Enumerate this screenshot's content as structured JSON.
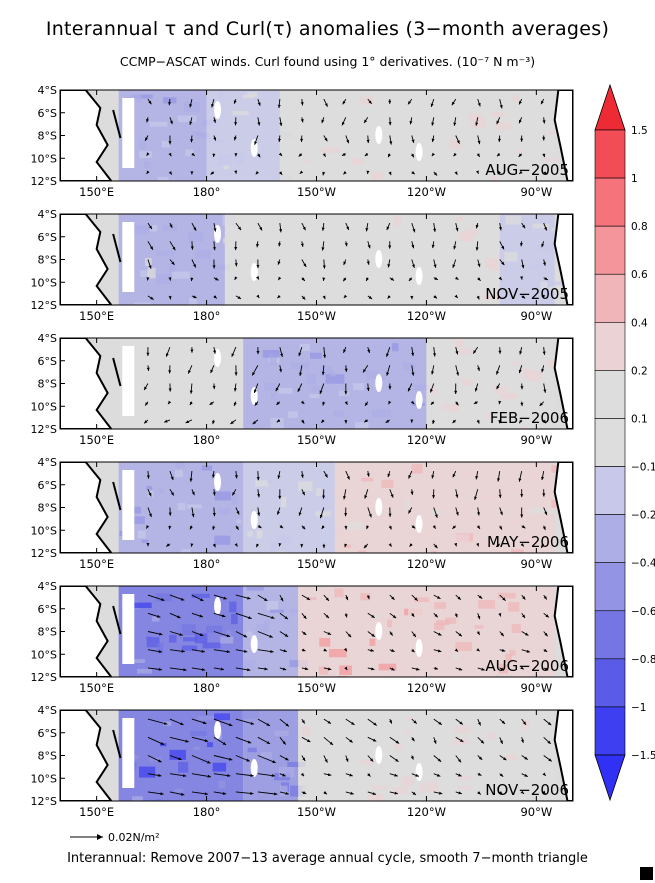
{
  "header": {
    "title": "Interannual τ and Curl(τ) anomalies (3−month averages)",
    "subtitle": "CCMP−ASCAT winds. Curl found using 1° derivatives. (10⁻⁷ N m⁻³)"
  },
  "footer": {
    "note": "Interannual: Remove 2007−13 average annual cycle, smooth 7−month triangle"
  },
  "reference_vector": {
    "label": "0.02N/m²",
    "magnitude": 0.02
  },
  "colorbar": {
    "tick_labels": [
      "1.5",
      "1",
      "0.8",
      "0.6",
      "0.4",
      "0.2",
      "0.1",
      "−0.1",
      "−0.2",
      "−0.4",
      "−0.6",
      "−0.8",
      "−1",
      "−1.5"
    ],
    "colors": [
      "#ee2a34",
      "#f24d57",
      "#f5737a",
      "#f3959a",
      "#efb5b8",
      "#ebd3d5",
      "#dddddd",
      "#dddddd",
      "#c8c9ea",
      "#adaee6",
      "#9394e3",
      "#7576e3",
      "#5a5be6",
      "#3d3ff0",
      "#3031f5"
    ]
  },
  "colors": {
    "land_coast": "#000000",
    "missing": "#ffffff",
    "neutral": "#dcdcdc"
  },
  "chart_data": {
    "type": "heatmap",
    "description_units": "Curl(τ) anomaly 10^-7 N m^-3 (shaded), τ anomaly vectors (arrows)",
    "xlim": [
      140,
      280
    ],
    "ylim": [
      -12,
      -4
    ],
    "x_tick_values": [
      150,
      180,
      210,
      240,
      270
    ],
    "x_tick_labels": [
      "150°E",
      "180°",
      "150°W",
      "120°W",
      "90°W"
    ],
    "y_tick_values": [
      -4,
      -6,
      -8,
      -10,
      -12
    ],
    "y_tick_labels": [
      "4°S",
      "6°S",
      "8°S",
      "10°S",
      "12°S"
    ],
    "panels": [
      {
        "label": "AUG−2005",
        "curl_regions": [
          {
            "x": [
              156,
              180
            ],
            "value": -0.3
          },
          {
            "x": [
              180,
              200
            ],
            "value": -0.1
          },
          {
            "x": [
              200,
              250
            ],
            "value": 0.15
          },
          {
            "x": [
              250,
              275
            ],
            "value": 0.2
          }
        ],
        "wind_u": 0.0,
        "wind_v": 0.006
      },
      {
        "label": "NOV−2005",
        "curl_regions": [
          {
            "x": [
              156,
              185
            ],
            "value": -0.2
          },
          {
            "x": [
              185,
              230
            ],
            "value": 0.1
          },
          {
            "x": [
              230,
              260
            ],
            "value": 0.2
          },
          {
            "x": [
              260,
              275
            ],
            "value": -0.1
          }
        ],
        "wind_u": 0.002,
        "wind_v": 0.006
      },
      {
        "label": "FEB−2006",
        "curl_regions": [
          {
            "x": [
              156,
              190
            ],
            "value": 0.1
          },
          {
            "x": [
              190,
              240
            ],
            "value": -0.3
          },
          {
            "x": [
              240,
              275
            ],
            "value": 0.2
          }
        ],
        "wind_u": -0.002,
        "wind_v": 0.007
      },
      {
        "label": "MAY−2006",
        "curl_regions": [
          {
            "x": [
              156,
              190
            ],
            "value": -0.3
          },
          {
            "x": [
              190,
              215
            ],
            "value": -0.1
          },
          {
            "x": [
              215,
              275
            ],
            "value": 0.3
          }
        ],
        "wind_u": 0.0,
        "wind_v": 0.007
      },
      {
        "label": "AUG−2006",
        "curl_regions": [
          {
            "x": [
              156,
              190
            ],
            "value": -0.6
          },
          {
            "x": [
              190,
              205
            ],
            "value": -0.3
          },
          {
            "x": [
              205,
              235
            ],
            "value": 0.4
          },
          {
            "x": [
              235,
              275
            ],
            "value": 0.3
          }
        ],
        "wind_u": 0.01,
        "wind_v": 0.004
      },
      {
        "label": "NOV−2006",
        "curl_regions": [
          {
            "x": [
              156,
              190
            ],
            "value": -0.7
          },
          {
            "x": [
              190,
              205
            ],
            "value": -0.4
          },
          {
            "x": [
              205,
              240
            ],
            "value": 0.2
          },
          {
            "x": [
              240,
              275
            ],
            "value": 0.15
          }
        ],
        "wind_u": 0.012,
        "wind_v": 0.005
      }
    ]
  }
}
